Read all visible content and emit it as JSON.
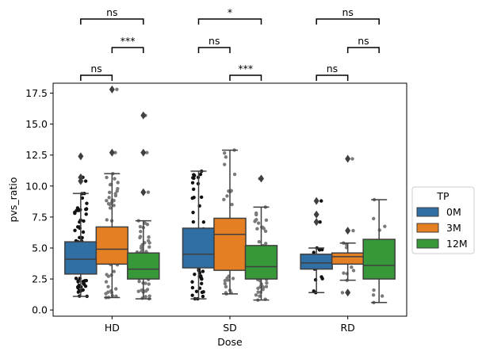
{
  "chart_data": {
    "type": "box",
    "xlabel": "Dose",
    "ylabel": "pvs_ratio",
    "ylim": [
      -0.5,
      18.3
    ],
    "yticks": [
      0.0,
      2.5,
      5.0,
      7.5,
      10.0,
      12.5,
      15.0,
      17.5
    ],
    "ytick_labels": [
      "0.0",
      "2.5",
      "5.0",
      "7.5",
      "10.0",
      "12.5",
      "15.0",
      "17.5"
    ],
    "categories": [
      "HD",
      "SD",
      "RD"
    ],
    "legend": {
      "title": "TP",
      "position": "center-right",
      "entries": [
        {
          "label": "0M",
          "color": "#2f6fa3"
        },
        {
          "label": "3M",
          "color": "#e57f23"
        },
        {
          "label": "12M",
          "color": "#37983a"
        }
      ]
    },
    "groups": [
      {
        "category": "HD",
        "boxes": [
          {
            "series": "0M",
            "whisker_low": 1.1,
            "q1": 2.9,
            "median": 4.1,
            "q3": 5.5,
            "whisker_high": 9.4,
            "outliers": [
              12.4,
              10.7,
              10.4
            ],
            "n": 90
          },
          {
            "series": "3M",
            "whisker_low": 1.0,
            "q1": 3.7,
            "median": 4.9,
            "q3": 6.7,
            "whisker_high": 11.0,
            "outliers": [
              17.8,
              12.7
            ],
            "n": 75
          },
          {
            "series": "12M",
            "whisker_low": 0.9,
            "q1": 2.5,
            "median": 3.3,
            "q3": 4.6,
            "whisker_high": 7.2,
            "outliers": [
              15.7,
              12.7,
              9.5
            ],
            "n": 70
          }
        ]
      },
      {
        "category": "SD",
        "boxes": [
          {
            "series": "0M",
            "whisker_low": 0.9,
            "q1": 3.4,
            "median": 4.5,
            "q3": 6.6,
            "whisker_high": 11.2,
            "outliers": [],
            "n": 75
          },
          {
            "series": "3M",
            "whisker_low": 1.3,
            "q1": 3.2,
            "median": 6.1,
            "q3": 7.4,
            "whisker_high": 12.9,
            "outliers": [],
            "n": 40
          },
          {
            "series": "12M",
            "whisker_low": 0.8,
            "q1": 2.5,
            "median": 3.5,
            "q3": 5.2,
            "whisker_high": 8.3,
            "outliers": [
              10.6
            ],
            "n": 60
          }
        ]
      },
      {
        "category": "RD",
        "boxes": [
          {
            "series": "0M",
            "whisker_low": 1.4,
            "q1": 3.3,
            "median": 3.8,
            "q3": 4.5,
            "whisker_high": 5.0,
            "outliers": [
              8.8,
              7.7,
              7.1
            ],
            "n": 15
          },
          {
            "series": "3M",
            "whisker_low": 2.4,
            "q1": 3.7,
            "median": 4.3,
            "q3": 4.6,
            "whisker_high": 5.4,
            "outliers": [
              12.2,
              6.4,
              1.4
            ],
            "n": 12
          },
          {
            "series": "12M",
            "whisker_low": 0.6,
            "q1": 2.5,
            "median": 3.6,
            "q3": 5.7,
            "whisker_high": 8.9,
            "outliers": [],
            "n": 12
          }
        ]
      }
    ],
    "significance": [
      {
        "category": "HD",
        "from": "0M",
        "to": "12M",
        "label": "ns",
        "level": 3
      },
      {
        "category": "HD",
        "from": "3M",
        "to": "12M",
        "label": "***",
        "level": 2
      },
      {
        "category": "HD",
        "from": "0M",
        "to": "3M",
        "label": "ns",
        "level": 1
      },
      {
        "category": "SD",
        "from": "0M",
        "to": "12M",
        "label": "*",
        "level": 3
      },
      {
        "category": "SD",
        "from": "0M",
        "to": "3M",
        "label": "ns",
        "level": 2
      },
      {
        "category": "SD",
        "from": "3M",
        "to": "12M",
        "label": "***",
        "level": 1
      },
      {
        "category": "RD",
        "from": "0M",
        "to": "12M",
        "label": "ns",
        "level": 3
      },
      {
        "category": "RD",
        "from": "3M",
        "to": "12M",
        "label": "ns",
        "level": 2
      },
      {
        "category": "RD",
        "from": "0M",
        "to": "3M",
        "label": "ns",
        "level": 1
      }
    ]
  }
}
